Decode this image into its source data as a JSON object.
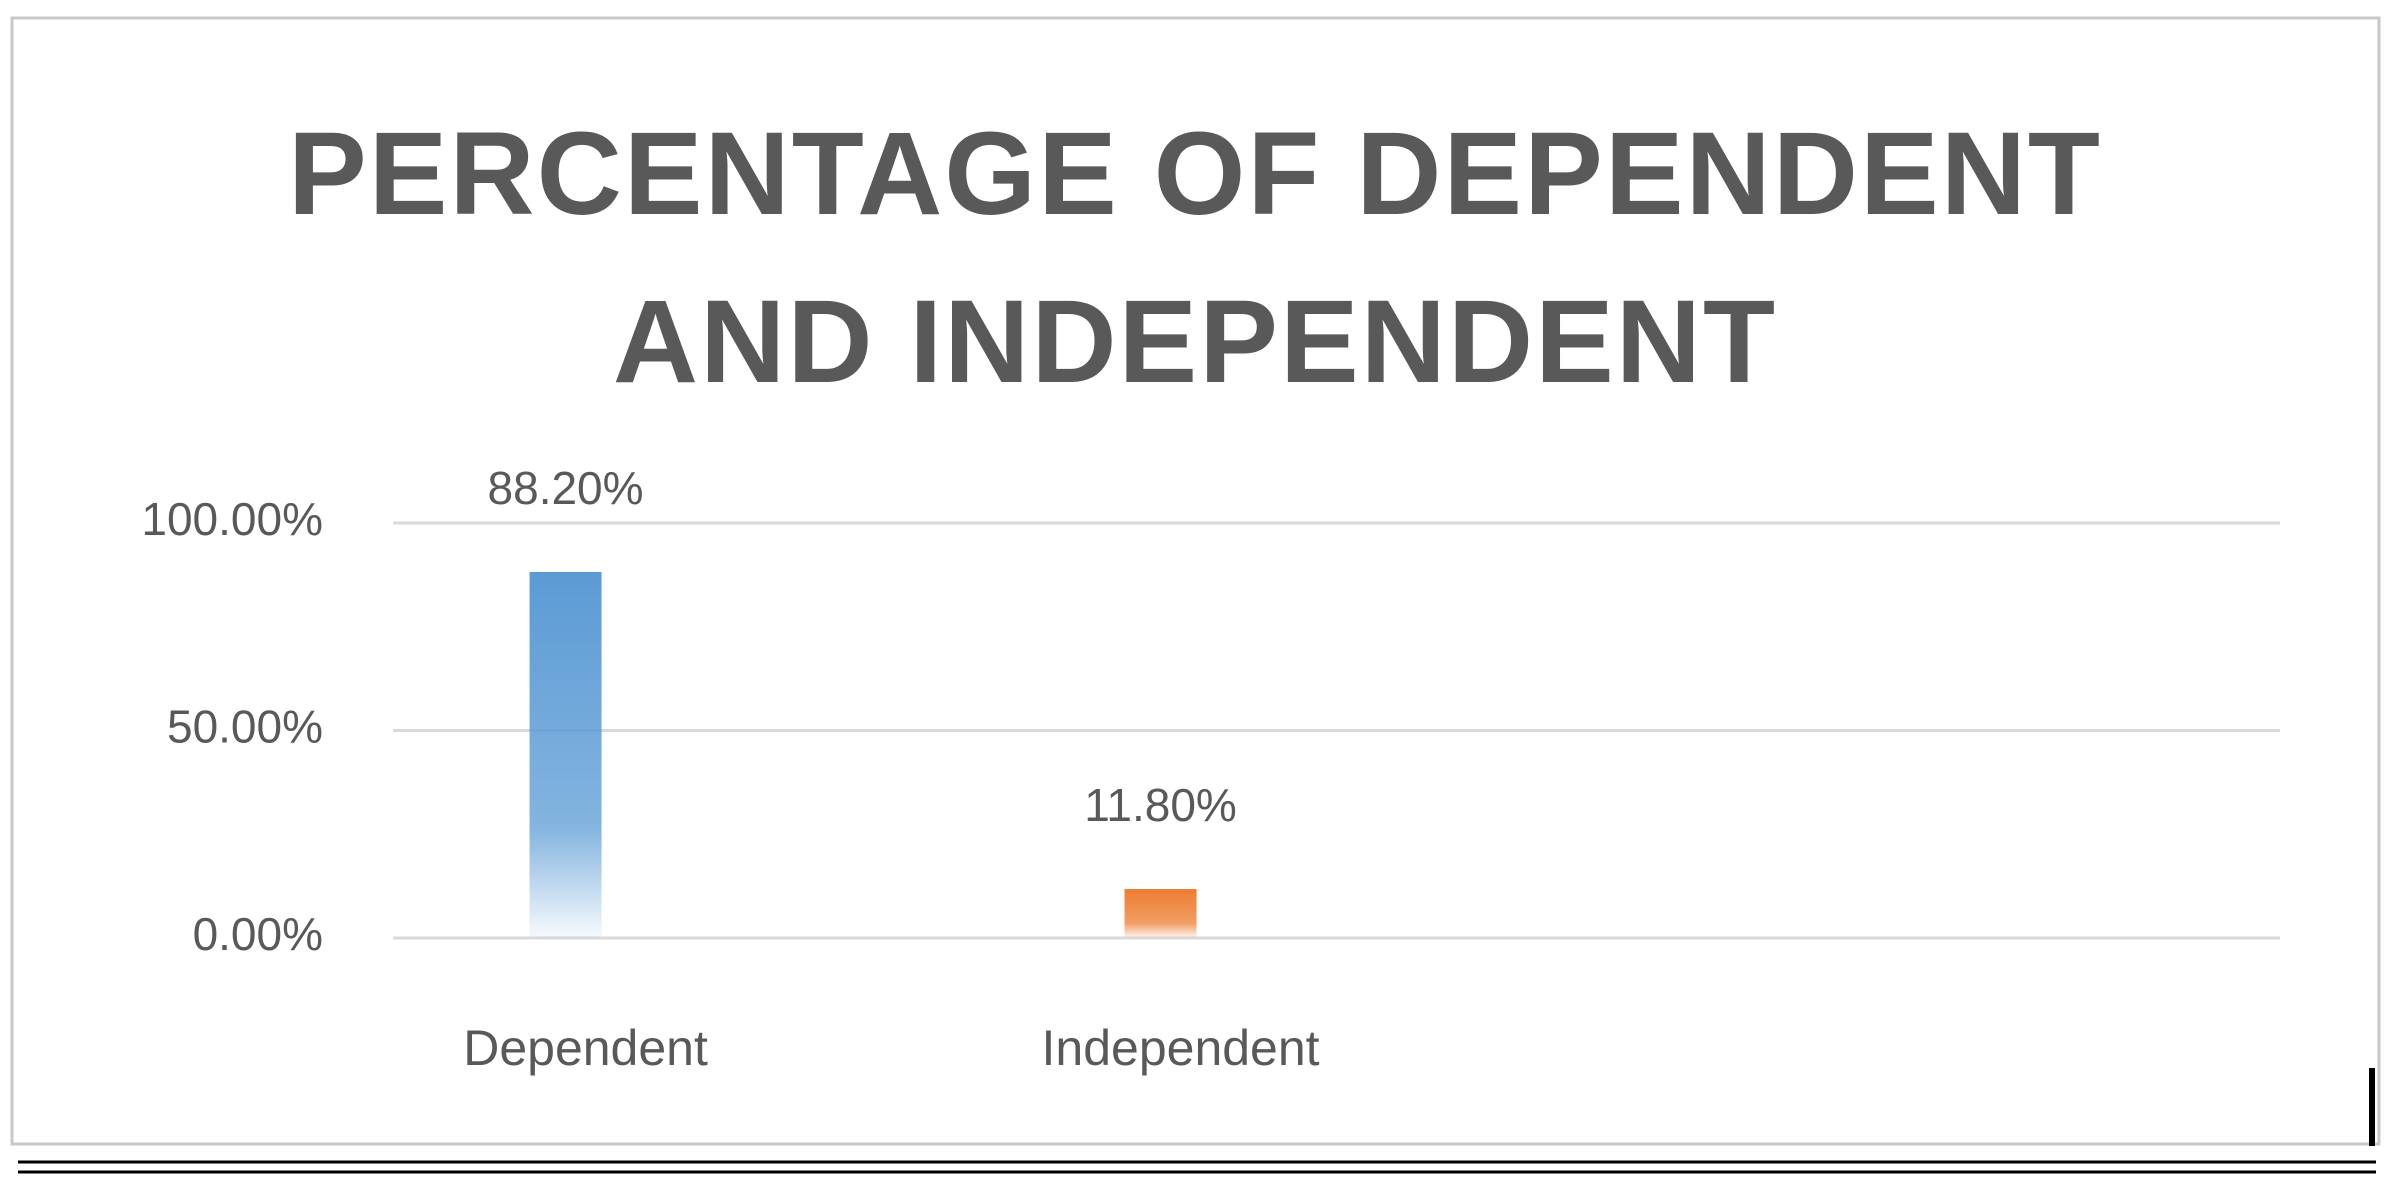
{
  "chart_data": {
    "type": "bar",
    "title": "PERCENTAGE OF DEPENDENT AND INDEPENDENT",
    "categories": [
      "Dependent",
      "Independent"
    ],
    "values": [
      88.2,
      11.8
    ],
    "value_labels": [
      "88.20%",
      "11.80%"
    ],
    "colors": [
      "#5b9bd5",
      "#ed7d31"
    ],
    "ylim": [
      0,
      100
    ],
    "yticks": [
      {
        "value": 0,
        "label": "0.00%"
      },
      {
        "value": 50,
        "label": "50.00%"
      },
      {
        "value": 100,
        "label": "100.00%"
      }
    ],
    "grid": true
  }
}
